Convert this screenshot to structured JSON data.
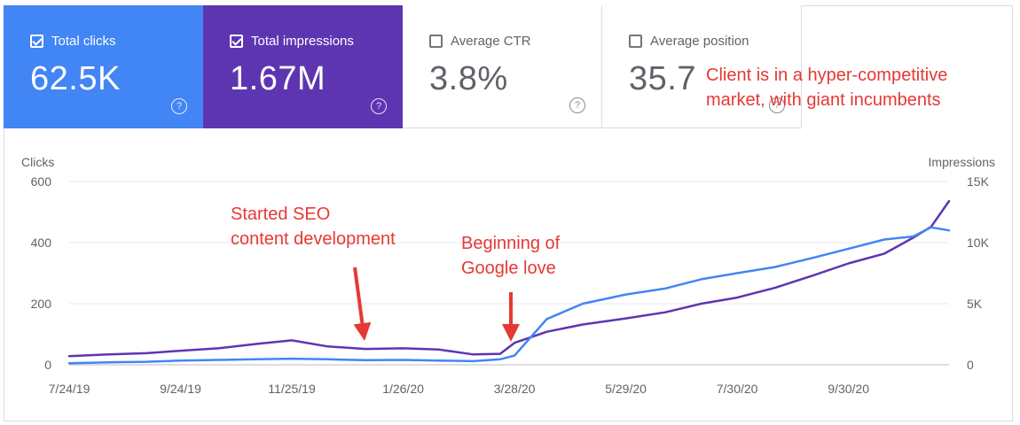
{
  "metrics": [
    {
      "label": "Total clicks",
      "value": "62.5K",
      "checked": true,
      "icon": "help-circle-icon",
      "color": "#4285f4"
    },
    {
      "label": "Total impressions",
      "value": "1.67M",
      "checked": true,
      "icon": "help-circle-icon",
      "color": "#5e35b1"
    },
    {
      "label": "Average CTR",
      "value": "3.8%",
      "checked": false,
      "icon": "help-circle-icon"
    },
    {
      "label": "Average position",
      "value": "35.7",
      "checked": false,
      "icon": "help-circle-icon"
    }
  ],
  "annotations": {
    "market_line1": "Client is in a hyper-competitive",
    "market_line2": "market, with giant  incumbents",
    "seo_line1": "Started SEO",
    "seo_line2": "content development",
    "google_line1": "Beginning of",
    "google_line2": "Google love"
  },
  "chart_data": {
    "type": "line",
    "left_axis_label": "Clicks",
    "right_axis_label": "Impressions",
    "left_ticks": [
      "600",
      "400",
      "200",
      "0"
    ],
    "right_ticks": [
      "15K",
      "10K",
      "5K",
      "0"
    ],
    "ylim_left": [
      0,
      600
    ],
    "ylim_right": [
      0,
      15000
    ],
    "x_ticks": [
      "7/24/19",
      "9/24/19",
      "11/25/19",
      "1/26/20",
      "3/28/20",
      "5/29/20",
      "7/30/20",
      "9/30/20"
    ],
    "x": [
      "7/24/19",
      "8/15/19",
      "9/5/19",
      "9/24/19",
      "10/15/19",
      "11/5/19",
      "11/25/19",
      "12/15/19",
      "1/5/20",
      "1/26/20",
      "2/15/20",
      "3/5/20",
      "3/20/20",
      "3/28/20",
      "4/15/20",
      "5/5/20",
      "5/29/20",
      "6/20/20",
      "7/10/20",
      "7/30/20",
      "8/20/20",
      "9/10/20",
      "9/30/20",
      "10/20/20",
      "11/5/20",
      "11/15/20",
      "11/25/20"
    ],
    "series": [
      {
        "name": "Clicks",
        "axis": "left",
        "color": "#4285f4",
        "values": [
          5,
          8,
          10,
          14,
          16,
          18,
          20,
          18,
          15,
          16,
          14,
          12,
          18,
          30,
          150,
          200,
          230,
          250,
          280,
          300,
          320,
          350,
          380,
          410,
          420,
          450,
          440
        ]
      },
      {
        "name": "Impressions",
        "axis": "right",
        "color": "#5e35b1",
        "values": [
          700,
          850,
          950,
          1150,
          1350,
          1700,
          2000,
          1500,
          1300,
          1350,
          1250,
          850,
          900,
          1800,
          2700,
          3300,
          3800,
          4300,
          5000,
          5500,
          6300,
          7300,
          8300,
          9100,
          10400,
          11300,
          13400
        ]
      }
    ]
  }
}
